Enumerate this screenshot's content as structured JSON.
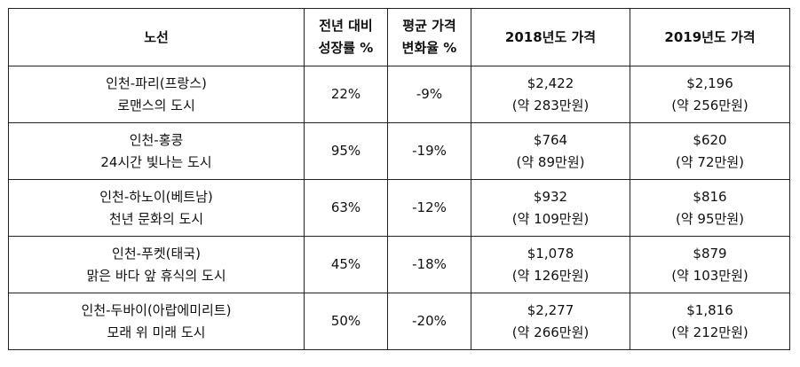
{
  "headers": {
    "route": "노선",
    "growth_line1": "전년 대비",
    "growth_line2": "성장률 %",
    "change_line1": "평균 가격",
    "change_line2": "변화율 %",
    "price_2018": "2018년도 가격",
    "price_2019": "2019년도 가격"
  },
  "rows": [
    {
      "route": "인천-파리(프랑스)",
      "subtitle": "로맨스의 도시",
      "growth": "22%",
      "change": "-9%",
      "price_2018_usd": "$2,422",
      "price_2018_krw": "(약 283만원)",
      "price_2019_usd": "$2,196",
      "price_2019_krw": "(약 256만원)"
    },
    {
      "route": "인천-홍콩",
      "subtitle": "24시간 빛나는 도시",
      "growth": "95%",
      "change": "-19%",
      "price_2018_usd": "$764",
      "price_2018_krw": "(약 89만원)",
      "price_2019_usd": "$620",
      "price_2019_krw": "(약 72만원)"
    },
    {
      "route": "인천-하노이(베트남)",
      "subtitle": "천년 문화의 도시",
      "growth": "63%",
      "change": "-12%",
      "price_2018_usd": "$932",
      "price_2018_krw": "(약 109만원)",
      "price_2019_usd": "$816",
      "price_2019_krw": "(약 95만원)"
    },
    {
      "route": "인천-푸켓(태국)",
      "subtitle": "맑은 바다 앞 휴식의 도시",
      "growth": "45%",
      "change": "-18%",
      "price_2018_usd": "$1,078",
      "price_2018_krw": "(약 126만원)",
      "price_2019_usd": "$879",
      "price_2019_krw": "(약 103만원)"
    },
    {
      "route": "인천-두바이(아랍에미리트)",
      "subtitle": "모래 위 미래 도시",
      "growth": "50%",
      "change": "-20%",
      "price_2018_usd": "$2,277",
      "price_2018_krw": "(약 266만원)",
      "price_2019_usd": "$1,816",
      "price_2019_krw": "(약 212만원)"
    }
  ]
}
